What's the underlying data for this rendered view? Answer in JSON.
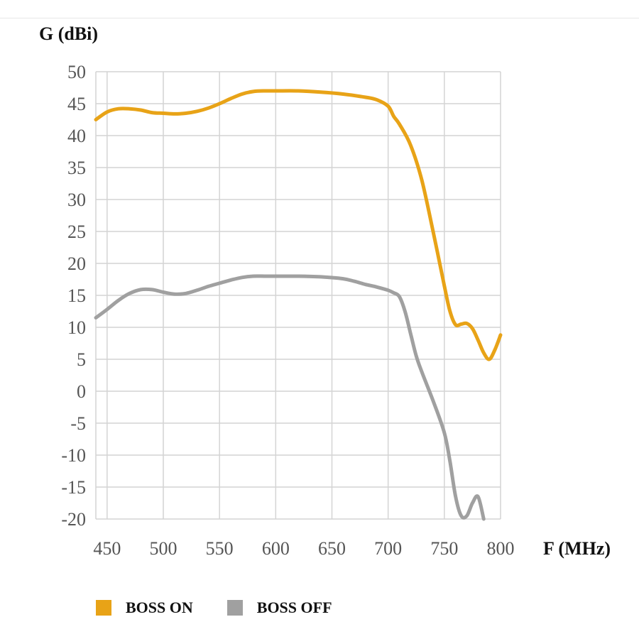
{
  "chart_data": {
    "type": "line",
    "ylabel": "G (dBi)",
    "xlabel": "F (MHz)",
    "xlim": [
      440,
      800
    ],
    "ylim": [
      -20,
      50
    ],
    "x_ticks": [
      450,
      500,
      550,
      600,
      650,
      700,
      750,
      800
    ],
    "y_ticks": [
      50,
      45,
      40,
      35,
      30,
      25,
      20,
      15,
      10,
      5,
      0,
      -5,
      -10,
      -15,
      -20
    ],
    "grid": true,
    "legend_position": "bottom",
    "series": [
      {
        "name": "BOSS ON",
        "color": "#E8A317",
        "x": [
          440,
          450,
          460,
          470,
          480,
          490,
          500,
          510,
          520,
          530,
          540,
          550,
          560,
          570,
          580,
          590,
          600,
          620,
          640,
          660,
          680,
          690,
          700,
          705,
          710,
          720,
          730,
          740,
          750,
          755,
          760,
          765,
          770,
          775,
          780,
          785,
          790,
          795,
          800
        ],
        "y": [
          42.5,
          43.7,
          44.2,
          44.2,
          44.0,
          43.6,
          43.5,
          43.4,
          43.5,
          43.8,
          44.3,
          45.0,
          45.8,
          46.5,
          46.9,
          47.0,
          47.0,
          47.0,
          46.8,
          46.5,
          46.0,
          45.6,
          44.6,
          43.0,
          41.8,
          38.5,
          33.0,
          25.0,
          16.5,
          12.5,
          10.4,
          10.5,
          10.6,
          9.8,
          8.0,
          6.0,
          5.0,
          6.5,
          8.8
        ]
      },
      {
        "name": "BOSS OFF",
        "color": "#A0A0A0",
        "x": [
          440,
          450,
          460,
          470,
          480,
          490,
          500,
          510,
          520,
          530,
          540,
          550,
          560,
          570,
          580,
          590,
          600,
          620,
          640,
          660,
          670,
          680,
          690,
          700,
          705,
          710,
          715,
          720,
          725,
          730,
          740,
          750,
          755,
          760,
          765,
          770,
          775,
          780,
          785
        ],
        "y": [
          11.5,
          12.8,
          14.2,
          15.3,
          15.9,
          15.9,
          15.5,
          15.2,
          15.3,
          15.8,
          16.4,
          16.9,
          17.4,
          17.8,
          18.0,
          18.0,
          18.0,
          18.0,
          17.9,
          17.6,
          17.2,
          16.7,
          16.3,
          15.8,
          15.4,
          14.8,
          12.5,
          9.0,
          5.5,
          3.0,
          -1.5,
          -6.5,
          -11.0,
          -16.5,
          -19.5,
          -19.5,
          -17.5,
          -16.5,
          -20.0
        ]
      }
    ]
  }
}
